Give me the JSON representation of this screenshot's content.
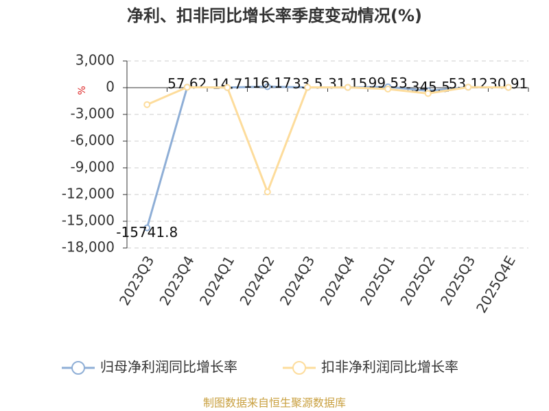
{
  "chart_data": {
    "type": "line",
    "title": "净利、扣非同比增长率季度变动情况(%)",
    "unit_label": "%",
    "categories": [
      "2023Q3",
      "2023Q4",
      "2024Q1",
      "2024Q2",
      "2024Q3",
      "2024Q4",
      "2025Q1",
      "2025Q2",
      "2025Q3",
      "2025Q4E"
    ],
    "series": [
      {
        "name": "归母净利润同比增长率",
        "color": "#8eaed6",
        "values": [
          -15741.8,
          57.62,
          14.7,
          116.17,
          33.5,
          31.15,
          99.53,
          -345.5,
          53.12,
          30.91
        ],
        "show_labels": true
      },
      {
        "name": "扣非净利润同比增长率",
        "color": "#fddc9b",
        "values": [
          -1900,
          50,
          20,
          -11700,
          40,
          30,
          -150,
          -650,
          60,
          30
        ],
        "show_labels": false
      }
    ],
    "ylim": [
      -18000,
      3000
    ],
    "yticks": [
      {
        "value": 3000,
        "label": "3,000"
      },
      0,
      {
        "value": -3000,
        "label": "-3,000"
      },
      {
        "value": -6000,
        "label": "-6,000"
      },
      {
        "value": -9000,
        "label": "-9,000"
      },
      {
        "value": -12000,
        "label": "-12,000"
      },
      {
        "value": -15000,
        "label": "-15,000"
      },
      {
        "value": -18000,
        "label": "-18,000"
      }
    ],
    "grid": true,
    "legend": "bottom",
    "source": "制图数据来自恒生聚源数据库"
  }
}
